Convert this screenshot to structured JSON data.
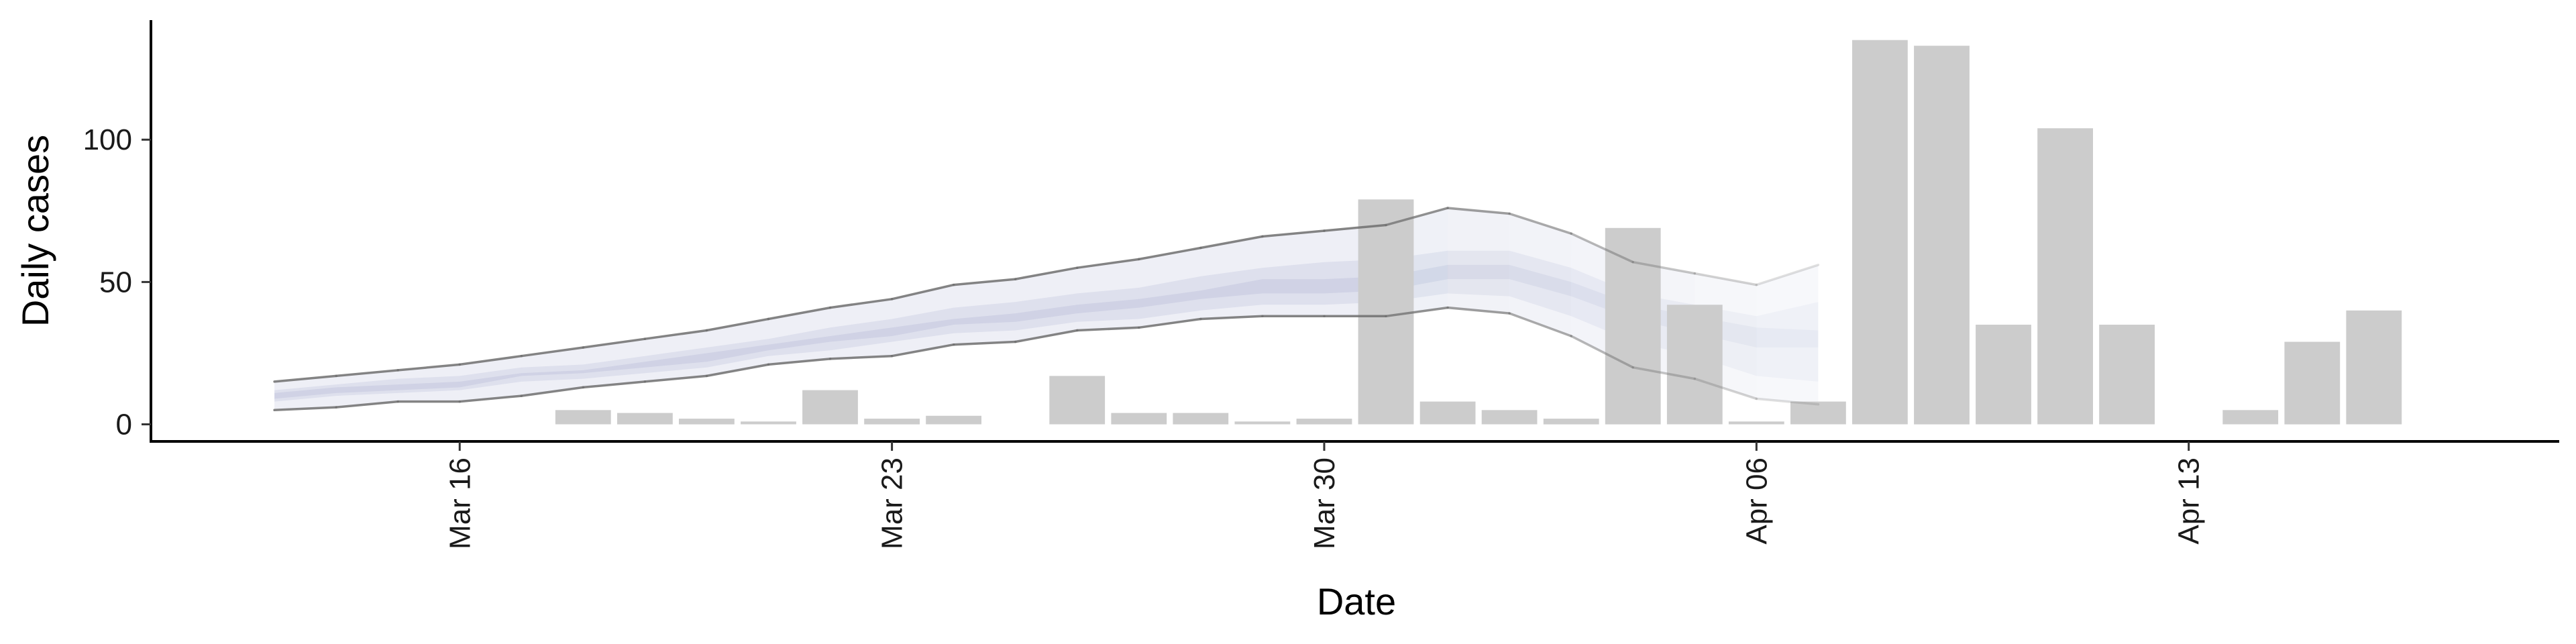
{
  "chart_data": {
    "type": "bar",
    "xlabel": "Date",
    "ylabel": "Daily cases",
    "xlim": [
      "2020-03-11",
      "2020-04-19"
    ],
    "ylim": [
      -6,
      142
    ],
    "grid": false,
    "legend": "none",
    "x_ticks": [
      {
        "date": "2020-03-16",
        "label": "Mar 16"
      },
      {
        "date": "2020-03-23",
        "label": "Mar 23"
      },
      {
        "date": "2020-03-30",
        "label": "Mar 30"
      },
      {
        "date": "2020-04-06",
        "label": "Apr 06"
      },
      {
        "date": "2020-04-13",
        "label": "Apr 13"
      }
    ],
    "y_ticks": [
      {
        "value": 0,
        "label": "0"
      },
      {
        "value": 50,
        "label": "50"
      },
      {
        "value": 100,
        "label": "100"
      }
    ],
    "bar_color": "#cccccc",
    "bars": {
      "dates": [
        "2020-03-18",
        "2020-03-19",
        "2020-03-20",
        "2020-03-21",
        "2020-03-22",
        "2020-03-23",
        "2020-03-24",
        "2020-03-25",
        "2020-03-26",
        "2020-03-27",
        "2020-03-28",
        "2020-03-29",
        "2020-03-30",
        "2020-03-31",
        "2020-04-01",
        "2020-04-02",
        "2020-04-03",
        "2020-04-04",
        "2020-04-05",
        "2020-04-06",
        "2020-04-07",
        "2020-04-08",
        "2020-04-09",
        "2020-04-10",
        "2020-04-11",
        "2020-04-12",
        "2020-04-13",
        "2020-04-14",
        "2020-04-15",
        "2020-04-16"
      ],
      "values": [
        5,
        4,
        2,
        1,
        12,
        2,
        3,
        0,
        17,
        4,
        4,
        1,
        2,
        79,
        8,
        5,
        2,
        69,
        42,
        1,
        8,
        135,
        133,
        35,
        104,
        35,
        0,
        5,
        29,
        40
      ]
    },
    "ribbons": {
      "color": "#3d4f99",
      "dates": [
        "2020-03-13",
        "2020-03-14",
        "2020-03-15",
        "2020-03-16",
        "2020-03-17",
        "2020-03-18",
        "2020-03-19",
        "2020-03-20",
        "2020-03-21",
        "2020-03-22",
        "2020-03-23",
        "2020-03-24",
        "2020-03-25",
        "2020-03-26",
        "2020-03-27",
        "2020-03-28",
        "2020-03-29",
        "2020-03-30",
        "2020-03-31",
        "2020-04-01",
        "2020-04-02",
        "2020-04-03",
        "2020-04-04",
        "2020-04-05",
        "2020-04-06",
        "2020-04-07"
      ],
      "outer_lower": [
        5,
        6,
        8,
        8,
        10,
        13,
        15,
        17,
        21,
        23,
        24,
        28,
        29,
        33,
        34,
        37,
        38,
        38,
        38,
        41,
        39,
        31,
        20,
        16,
        9,
        7
      ],
      "outer_upper": [
        15,
        17,
        19,
        21,
        24,
        27,
        30,
        33,
        37,
        41,
        44,
        49,
        51,
        55,
        58,
        62,
        66,
        68,
        70,
        76,
        74,
        67,
        57,
        53,
        49,
        56
      ],
      "mid_lower": [
        8,
        10,
        11,
        12,
        15,
        16,
        18,
        20,
        24,
        26,
        29,
        32,
        33,
        36,
        37,
        40,
        42,
        42,
        43,
        46,
        45,
        38,
        29,
        24,
        17,
        15
      ],
      "mid_upper": [
        12,
        14,
        16,
        17,
        20,
        21,
        24,
        27,
        30,
        34,
        37,
        41,
        43,
        46,
        48,
        52,
        55,
        57,
        58,
        61,
        61,
        55,
        46,
        42,
        38,
        43
      ],
      "inner_lower": [
        9,
        11,
        12,
        13,
        17,
        18,
        20,
        22,
        26,
        29,
        31,
        35,
        36,
        39,
        41,
        44,
        46,
        46,
        47,
        51,
        51,
        45,
        37,
        32,
        27,
        27
      ],
      "inner_upper": [
        11,
        13,
        14,
        15,
        18,
        19,
        22,
        25,
        28,
        31,
        34,
        37,
        39,
        42,
        44,
        47,
        51,
        51,
        52,
        56,
        56,
        50,
        42,
        38,
        34,
        33
      ]
    }
  }
}
